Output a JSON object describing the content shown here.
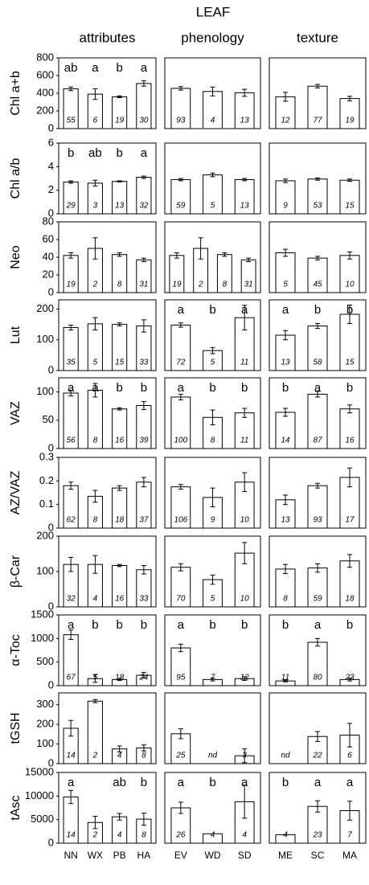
{
  "chart_data": {
    "type": "bar",
    "title": "LEAF",
    "columns": [
      {
        "title": "attributes",
        "categories": [
          "NN",
          "WX",
          "PB",
          "HA"
        ]
      },
      {
        "title": "phenology",
        "categories": [
          "EV",
          "WD",
          "SD"
        ]
      },
      {
        "title": "texture",
        "categories": [
          "ME",
          "SC",
          "MA"
        ]
      }
    ],
    "rows": [
      {
        "ylabel": "Chl a+b",
        "ylim": [
          0,
          800
        ],
        "yticks": [
          0,
          200,
          400,
          600,
          800
        ],
        "panels": [
          {
            "values": [
              450,
              390,
              360,
              510
            ],
            "errors": [
              20,
              60,
              10,
              30
            ],
            "letters": [
              "ab",
              "a",
              "b",
              "a"
            ],
            "n": [
              55,
              6,
              19,
              30
            ]
          },
          {
            "values": [
              455,
              420,
              405
            ],
            "errors": [
              20,
              50,
              40
            ],
            "n": [
              93,
              4,
              13
            ]
          },
          {
            "values": [
              360,
              480,
              340
            ],
            "errors": [
              50,
              20,
              25
            ],
            "n": [
              12,
              77,
              19
            ]
          }
        ]
      },
      {
        "ylabel": "Chl a/b",
        "ylim": [
          0,
          6
        ],
        "yticks": [
          0,
          2,
          4,
          6
        ],
        "panels": [
          {
            "values": [
              2.7,
              2.6,
              2.75,
              3.1
            ],
            "errors": [
              0.1,
              0.25,
              0.05,
              0.1
            ],
            "letters": [
              "b",
              "ab",
              "b",
              "a"
            ],
            "n": [
              29,
              3,
              13,
              32
            ]
          },
          {
            "values": [
              2.9,
              3.3,
              2.9
            ],
            "errors": [
              0.1,
              0.15,
              0.1
            ],
            "n": [
              59,
              5,
              13
            ]
          },
          {
            "values": [
              2.8,
              2.95,
              2.85
            ],
            "errors": [
              0.15,
              0.1,
              0.1
            ],
            "n": [
              9,
              53,
              15
            ]
          }
        ]
      },
      {
        "ylabel": "Neo",
        "ylim": [
          0,
          80
        ],
        "yticks": [
          0,
          20,
          40,
          60,
          80
        ],
        "panels": [
          {
            "values": [
              42,
              50,
              43,
              37
            ],
            "errors": [
              3,
              12,
              2,
              2
            ],
            "n": [
              19,
              2,
              8,
              31
            ]
          },
          {
            "values": [
              42,
              50,
              43,
              37
            ],
            "errors": [
              3,
              12,
              2,
              2
            ],
            "n": [
              19,
              2,
              8,
              31
            ]
          },
          {
            "values": [
              45,
              39,
              42
            ],
            "errors": [
              4,
              2,
              4
            ],
            "n": [
              5,
              45,
              10
            ]
          }
        ]
      },
      {
        "ylabel": "Lut",
        "ylim": [
          0,
          230
        ],
        "yticks": [
          0,
          100,
          200
        ],
        "panels": [
          {
            "values": [
              140,
              152,
              150,
              145
            ],
            "errors": [
              8,
              20,
              5,
              20
            ],
            "n": [
              35,
              5,
              15,
              33
            ]
          },
          {
            "values": [
              148,
              65,
              172
            ],
            "errors": [
              7,
              10,
              40
            ],
            "letters": [
              "a",
              "b",
              "a"
            ],
            "n": [
              72,
              5,
              11
            ]
          },
          {
            "values": [
              115,
              145,
              183
            ],
            "errors": [
              15,
              8,
              30
            ],
            "letters": [
              "a",
              "b",
              "b"
            ],
            "n": [
              13,
              58,
              15
            ]
          }
        ]
      },
      {
        "ylabel": "VAZ",
        "ylim": [
          0,
          125
        ],
        "yticks": [
          0,
          50,
          100
        ],
        "panels": [
          {
            "values": [
              98,
              103,
              70,
              76
            ],
            "errors": [
              5,
              12,
              2,
              7
            ],
            "letters": [
              "a",
              "a",
              "b",
              "b"
            ],
            "n": [
              56,
              8,
              16,
              39
            ]
          },
          {
            "values": [
              91,
              55,
              63
            ],
            "errors": [
              5,
              13,
              8
            ],
            "letters": [
              "a",
              "b",
              "b"
            ],
            "n": [
              100,
              8,
              11
            ]
          },
          {
            "values": [
              64,
              96,
              70
            ],
            "errors": [
              7,
              5,
              7
            ],
            "letters": [
              "b",
              "a",
              "b"
            ],
            "n": [
              14,
              87,
              16
            ]
          }
        ]
      },
      {
        "ylabel": "AZ/VAZ",
        "ylim": [
          0,
          0.3
        ],
        "yticks": [
          0,
          0.1,
          0.2,
          0.3
        ],
        "panels": [
          {
            "values": [
              0.18,
              0.135,
              0.17,
              0.195
            ],
            "errors": [
              0.015,
              0.025,
              0.01,
              0.02
            ],
            "n": [
              62,
              8,
              18,
              37
            ]
          },
          {
            "values": [
              0.175,
              0.13,
              0.195
            ],
            "errors": [
              0.01,
              0.04,
              0.04
            ],
            "n": [
              106,
              9,
              10
            ]
          },
          {
            "values": [
              0.12,
              0.18,
              0.215
            ],
            "errors": [
              0.02,
              0.01,
              0.04
            ],
            "n": [
              13,
              93,
              17
            ]
          }
        ]
      },
      {
        "ylabel": "β-Car",
        "ylim": [
          0,
          200
        ],
        "yticks": [
          0,
          100,
          200
        ],
        "panels": [
          {
            "values": [
              120,
              120,
              117,
              105
            ],
            "errors": [
              20,
              25,
              3,
              12
            ],
            "n": [
              32,
              4,
              16,
              33
            ]
          },
          {
            "values": [
              112,
              77,
              152
            ],
            "errors": [
              10,
              13,
              30
            ],
            "n": [
              70,
              5,
              10
            ]
          },
          {
            "values": [
              107,
              110,
              130
            ],
            "errors": [
              13,
              12,
              18
            ],
            "n": [
              8,
              59,
              18
            ]
          }
        ]
      },
      {
        "ylabel": "α-Toc",
        "ylim": [
          0,
          1500
        ],
        "yticks": [
          0,
          500,
          1000,
          1500
        ],
        "panels": [
          {
            "values": [
              1080,
              150,
              130,
              220
            ],
            "errors": [
              100,
              80,
              20,
              60
            ],
            "letters": [
              "a",
              "b",
              "b",
              "b"
            ],
            "n": [
              67,
              5,
              18,
              24
            ]
          },
          {
            "values": [
              800,
              130,
              150
            ],
            "errors": [
              80,
              30,
              40
            ],
            "letters": [
              "a",
              "b",
              "b"
            ],
            "n": [
              95,
              7,
              12
            ]
          },
          {
            "values": [
              100,
              920,
              130
            ],
            "errors": [
              20,
              80,
              30
            ],
            "letters": [
              "b",
              "a",
              "b"
            ],
            "n": [
              11,
              80,
              23
            ]
          }
        ]
      },
      {
        "ylabel": "tGSH",
        "ylim": [
          0,
          360
        ],
        "yticks": [
          0,
          100,
          200,
          300
        ],
        "panels": [
          {
            "values": [
              180,
              318,
              75,
              80
            ],
            "errors": [
              40,
              8,
              15,
              15
            ],
            "n": [
              14,
              2,
              4,
              8
            ]
          },
          {
            "values": [
              152,
              null,
              40
            ],
            "errors": [
              25,
              null,
              35
            ],
            "n": [
              25,
              "nd",
              3
            ]
          },
          {
            "values": [
              null,
              138,
              145
            ],
            "errors": [
              null,
              25,
              60
            ],
            "n": [
              "nd",
              22,
              6
            ]
          }
        ]
      },
      {
        "ylabel": "tAsc",
        "ylim": [
          0,
          15000
        ],
        "yticks": [
          0,
          5000,
          10000,
          15000
        ],
        "panels": [
          {
            "values": [
              9800,
              4400,
              5600,
              5100
            ],
            "errors": [
              1400,
              1300,
              700,
              1300
            ],
            "letters": [
              "a",
              null,
              "ab",
              "b"
            ],
            "n": [
              14,
              2,
              4,
              8
            ]
          },
          {
            "values": [
              7500,
              2000,
              8800
            ],
            "errors": [
              1200,
              0,
              3500
            ],
            "letters": [
              "a",
              "b",
              "a"
            ],
            "n": [
              26,
              4,
              4
            ]
          },
          {
            "values": [
              1800,
              7800,
              6900
            ],
            "errors": [
              0,
              1200,
              2000
            ],
            "letters": [
              "b",
              "a",
              "a"
            ],
            "n": [
              4,
              23,
              7
            ]
          }
        ]
      }
    ]
  }
}
